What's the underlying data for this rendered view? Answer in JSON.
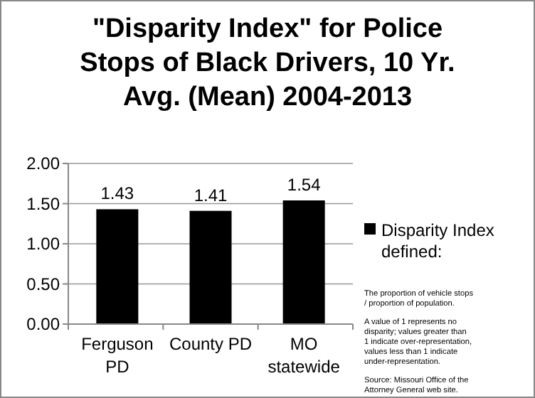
{
  "chart_data": {
    "type": "bar",
    "title": "\"Disparity Index\" for Police Stops of Black Drivers, 10 Yr. Avg. (Mean) 2004-2013",
    "categories": [
      "Ferguson PD",
      "County PD",
      "MO statewide"
    ],
    "series": [
      {
        "name": "Disparity Index defined:",
        "color": "#000000",
        "values": [
          1.43,
          1.41,
          1.54
        ]
      }
    ],
    "ylim": [
      0,
      2
    ],
    "yticks": [
      {
        "value": 0,
        "label": "0.00"
      },
      {
        "value": 0.5,
        "label": "0.50"
      },
      {
        "value": 1,
        "label": "1.00"
      },
      {
        "value": 1.5,
        "label": "1.50"
      },
      {
        "value": 2,
        "label": "2.00"
      }
    ],
    "grid": "y",
    "legend": "right",
    "data_labels": true,
    "annotations": [
      "The proportion of vehicle stops / proportion of population.",
      "A value of 1 represents no disparity; values greater than 1 indicate over-representation, values less than 1 indicate under-representation.",
      "Source: Missouri Office of the Attorney General web site."
    ]
  }
}
